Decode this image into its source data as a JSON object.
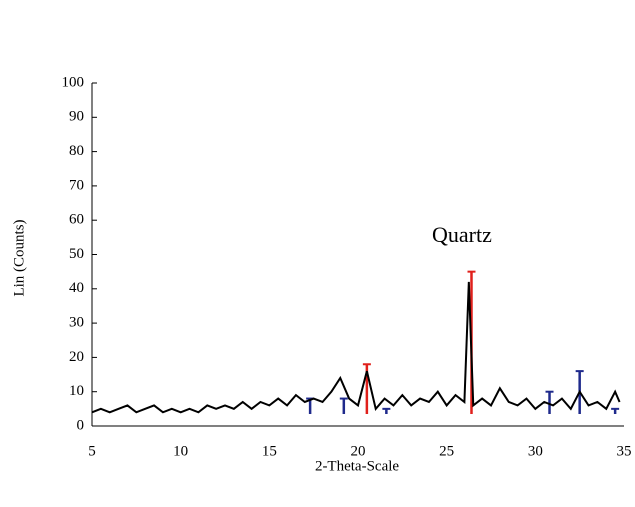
{
  "chart_data": {
    "type": "line",
    "x_label": "2-Theta-Scale",
    "y_label": "Lin (Counts)",
    "annotation": "Quartz",
    "xlim": [
      5,
      35
    ],
    "ylim": [
      0,
      100
    ],
    "xticks": [
      5,
      10,
      15,
      20,
      25,
      30,
      35
    ],
    "yticks": [
      0,
      10,
      20,
      30,
      40,
      50,
      60,
      70,
      80,
      90,
      100
    ],
    "grid": false,
    "x": [
      5,
      5.5,
      6,
      6.5,
      7,
      7.5,
      8,
      8.5,
      9,
      9.5,
      10,
      10.5,
      11,
      11.5,
      12,
      12.5,
      13,
      13.5,
      14,
      14.5,
      15,
      15.5,
      16,
      16.5,
      17,
      17.5,
      18,
      18.5,
      19,
      19.5,
      20,
      20.5,
      21,
      21.5,
      22,
      22.5,
      23,
      23.5,
      24,
      24.5,
      25,
      25.5,
      26,
      26.25,
      26.5,
      27,
      27.5,
      28,
      28.5,
      29,
      29.5,
      30,
      30.5,
      31,
      31.5,
      32,
      32.5,
      33,
      33.5,
      34,
      34.5,
      34.75
    ],
    "series": [
      {
        "color": "#000000",
        "values": [
          4,
          5,
          4,
          5,
          6,
          4,
          5,
          6,
          4,
          5,
          4,
          5,
          4,
          6,
          5,
          6,
          5,
          7,
          5,
          7,
          6,
          8,
          6,
          9,
          7,
          8,
          7,
          10,
          14,
          8,
          6,
          16,
          5,
          8,
          6,
          9,
          6,
          8,
          7,
          10,
          6,
          9,
          7,
          42,
          6,
          8,
          6,
          11,
          7,
          6,
          8,
          5,
          7,
          6,
          8,
          5,
          10,
          6,
          7,
          5,
          10,
          7
        ]
      }
    ],
    "reference_peaks": [
      {
        "color": "#e0201b",
        "x": [
          20.5,
          26.4
        ],
        "values": [
          18,
          45
        ]
      },
      {
        "color": "#1f2a8c",
        "x": [
          17.3,
          19.2,
          21.6,
          30.8,
          32.5,
          34.5
        ],
        "values": [
          8,
          8,
          5,
          10,
          16,
          5
        ]
      }
    ]
  }
}
